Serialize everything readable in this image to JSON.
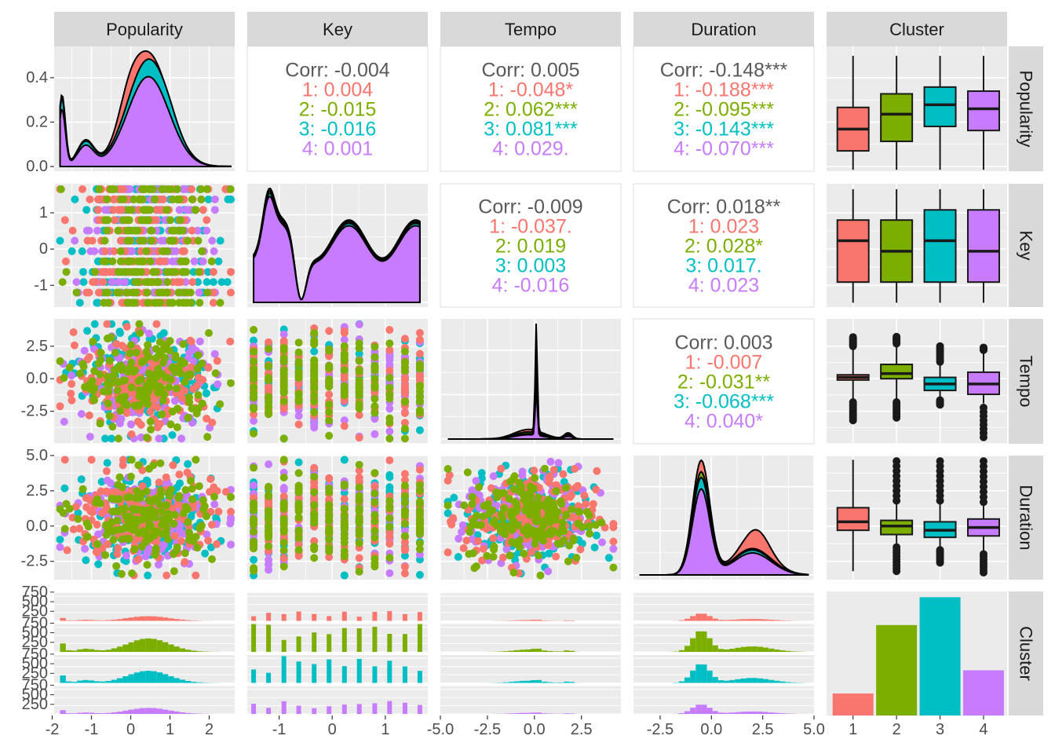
{
  "chart_data": {
    "type": "scatter",
    "variables": [
      "Popularity",
      "Key",
      "Tempo",
      "Duration",
      "Cluster"
    ],
    "clusters": [
      "1",
      "2",
      "3",
      "4"
    ],
    "colors": {
      "1": "#F8766D",
      "2": "#7CAE00",
      "3": "#00BFC4",
      "4": "#C77CFF"
    },
    "axes": {
      "Popularity": {
        "lim": [
          -1.95,
          2.65
        ],
        "ticks": [
          "-2",
          "-1",
          "0",
          "1",
          "2"
        ],
        "tick_values": [
          -2,
          -1,
          0,
          1,
          2
        ],
        "range": [
          -1.8,
          2.55
        ]
      },
      "Key": {
        "lim": [
          -1.6,
          1.8
        ],
        "ticks": [
          "-1",
          "0",
          "1"
        ],
        "tick_values": [
          -1,
          0,
          1
        ],
        "range": [
          -1.48,
          1.65
        ],
        "levels": [
          -1.48,
          -1.2,
          -0.91,
          -0.63,
          -0.34,
          -0.06,
          0.23,
          0.51,
          0.8,
          1.08,
          1.37,
          1.65
        ]
      },
      "Tempo": {
        "lim": [
          -5.0,
          4.6
        ],
        "ticks": [
          "-5.0",
          "-2.5",
          "0.0",
          "2.5"
        ],
        "tick_values": [
          -5.0,
          -2.5,
          0.0,
          2.5
        ],
        "range": [
          -4.6,
          4.2
        ]
      },
      "Duration": {
        "lim": [
          -3.8,
          5.0
        ],
        "ticks": [
          "-2.5",
          "0.0",
          "2.5",
          "5.0"
        ],
        "tick_values": [
          -2.5,
          0.0,
          2.5,
          5.0
        ],
        "range": [
          -3.5,
          4.7
        ]
      },
      "Cluster": {
        "ticks": [
          "1",
          "2",
          "3",
          "4"
        ],
        "bar_counts": [
          190,
          780,
          1020,
          390
        ],
        "count_max": 1070
      }
    },
    "density_max": 0.52,
    "density_ticks": [
      "0.0",
      "0.2",
      "0.4"
    ],
    "density_tick_values": [
      0.0,
      0.2,
      0.4
    ],
    "facet_count_ticks": [
      "250",
      "500",
      "750"
    ],
    "facet_count_tick_values": [
      250,
      500,
      750
    ],
    "facet_count_max": 850,
    "correlations": [
      {
        "row": 0,
        "col": 1,
        "lines": [
          "Corr: -0.004",
          "1: 0.004",
          "2: -0.015",
          "3: -0.016",
          "4: 0.001"
        ]
      },
      {
        "row": 0,
        "col": 2,
        "lines": [
          "Corr: 0.005",
          "1: -0.048*",
          "2: 0.062***",
          "3: 0.081***",
          "4: 0.029."
        ]
      },
      {
        "row": 0,
        "col": 3,
        "lines": [
          "Corr: -0.148***",
          "1: -0.188***",
          "2: -0.095***",
          "3: -0.143***",
          "4: -0.070***"
        ]
      },
      {
        "row": 1,
        "col": 2,
        "lines": [
          "Corr: -0.009",
          "1: -0.037.",
          "2: 0.019",
          "3: 0.003",
          "4: -0.016"
        ]
      },
      {
        "row": 1,
        "col": 3,
        "lines": [
          "Corr: 0.018**",
          "1: 0.023",
          "2: 0.028*",
          "3: 0.017.",
          "4: 0.023"
        ]
      },
      {
        "row": 2,
        "col": 3,
        "lines": [
          "Corr: 0.003",
          "1: -0.007",
          "2: -0.031**",
          "3: -0.068***",
          "4: 0.040*"
        ]
      }
    ],
    "boxplots": {
      "Popularity": [
        {
          "lower": -1.9,
          "q1": -1.2,
          "median": -0.4,
          "q3": 0.4,
          "upper": 2.3
        },
        {
          "lower": -1.9,
          "q1": -0.85,
          "median": 0.15,
          "q3": 0.9,
          "upper": 2.3
        },
        {
          "lower": -1.9,
          "q1": -0.3,
          "median": 0.5,
          "q3": 1.15,
          "upper": 2.3
        },
        {
          "lower": -1.9,
          "q1": -0.45,
          "median": 0.35,
          "q3": 1.0,
          "upper": 2.3
        }
      ],
      "Key": [
        {
          "lower": -1.48,
          "q1": -0.91,
          "median": 0.23,
          "q3": 0.8,
          "upper": 1.65
        },
        {
          "lower": -1.48,
          "q1": -0.91,
          "median": -0.06,
          "q3": 0.8,
          "upper": 1.65
        },
        {
          "lower": -1.48,
          "q1": -0.91,
          "median": 0.23,
          "q3": 1.08,
          "upper": 1.65
        },
        {
          "lower": -1.48,
          "q1": -0.91,
          "median": -0.06,
          "q3": 1.08,
          "upper": 1.65
        }
      ],
      "Tempo": [
        {
          "lower": -1.8,
          "q1": -0.1,
          "median": 0.1,
          "q3": 0.3,
          "upper": 2.5
        },
        {
          "lower": -1.8,
          "q1": 0.0,
          "median": 0.4,
          "q3": 1.1,
          "upper": 2.7
        },
        {
          "lower": -1.6,
          "q1": -0.9,
          "median": -0.4,
          "q3": 0.1,
          "upper": 1.3
        },
        {
          "lower": -1.9,
          "q1": -1.2,
          "median": -0.4,
          "q3": 0.5,
          "upper": 2.2
        }
      ],
      "Duration": [
        {
          "lower": -3.2,
          "q1": -0.3,
          "median": 0.3,
          "q3": 1.3,
          "upper": 4.7
        },
        {
          "lower": -1.5,
          "q1": -0.6,
          "median": 0.0,
          "q3": 0.4,
          "upper": 1.8
        },
        {
          "lower": -1.7,
          "q1": -0.8,
          "median": -0.3,
          "q3": 0.3,
          "upper": 1.8
        },
        {
          "lower": -1.8,
          "q1": -0.7,
          "median": -0.1,
          "q3": 0.5,
          "upper": 1.7
        }
      ]
    },
    "boxplot_outliers": {
      "Tempo": [
        [
          -3.2,
          3.2
        ],
        [
          -3.0,
          3.3
        ],
        [
          -2.0,
          2.5
        ],
        [
          -4.5,
          2.4
        ]
      ],
      "Duration": [
        [],
        [
          -3.2,
          4.6
        ],
        [
          -2.6,
          4.6
        ],
        [
          -3.3,
          4.6
        ]
      ]
    }
  }
}
